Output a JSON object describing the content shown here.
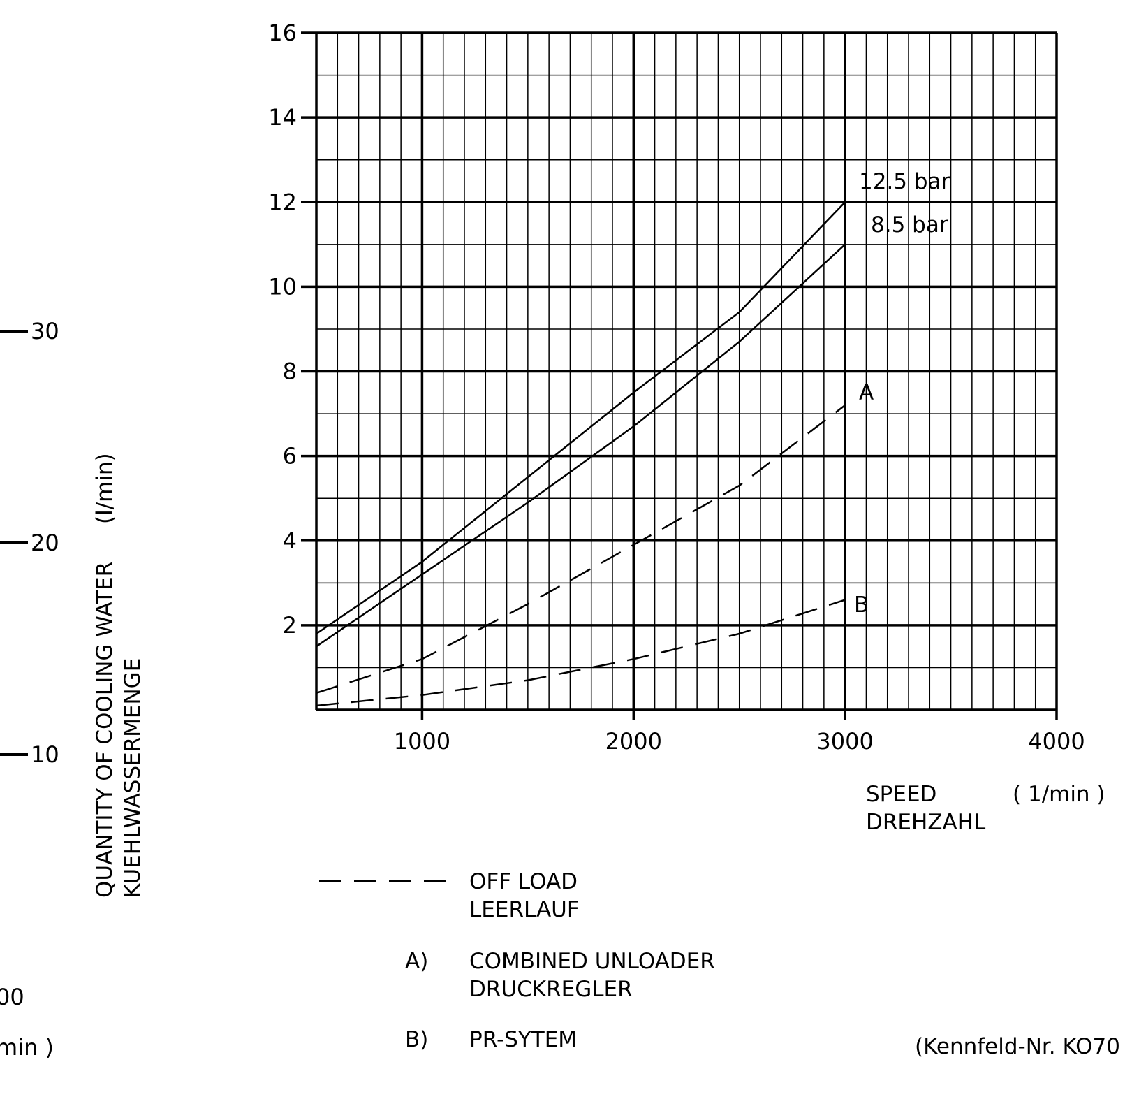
{
  "left_scale": {
    "ticks": [
      "30",
      "20",
      "10"
    ],
    "cut_tick": "00",
    "cut_unit": "min  )"
  },
  "chart_data": {
    "type": "line",
    "title": "",
    "xlabel": [
      "SPEED",
      "DREHZAHL"
    ],
    "xunit": "( 1/min )",
    "ylabel": [
      "QUANTITY OF COOLING WATER",
      "KUEHLWASSERMENGE"
    ],
    "yunit": "(l/min)",
    "xlim": [
      500,
      4000
    ],
    "ylim": [
      0,
      16
    ],
    "x_ticks": [
      1000,
      2000,
      3000,
      4000
    ],
    "y_ticks": [
      2,
      4,
      6,
      8,
      10,
      12,
      14,
      16
    ],
    "grid": true,
    "series": [
      {
        "name": "12.5 bar",
        "style": "solid",
        "x": [
          500,
          1000,
          1500,
          2000,
          2500,
          3000
        ],
        "y": [
          1.8,
          3.5,
          5.5,
          7.5,
          9.4,
          12.0
        ]
      },
      {
        "name": "8.5 bar",
        "style": "solid",
        "x": [
          500,
          1000,
          1500,
          2000,
          2500,
          3000
        ],
        "y": [
          1.5,
          3.2,
          4.9,
          6.7,
          8.7,
          11.0
        ]
      },
      {
        "name": "A",
        "style": "dashed",
        "x": [
          500,
          1000,
          1500,
          2000,
          2500,
          3000
        ],
        "y": [
          0.4,
          1.2,
          2.5,
          3.9,
          5.3,
          7.2
        ]
      },
      {
        "name": "B",
        "style": "dashed",
        "x": [
          500,
          1000,
          1500,
          2000,
          2500,
          3000
        ],
        "y": [
          0.1,
          0.35,
          0.7,
          1.2,
          1.8,
          2.6
        ]
      }
    ],
    "legend": {
      "off_load": [
        "OFF LOAD",
        "LEERLAUF"
      ],
      "a_key": "A)",
      "a_text": [
        "COMBINED UNLOADER",
        "DRUCKREGLER"
      ],
      "b_key": "B)",
      "b_text": "PR-SYTEM"
    },
    "footnote": "(Kennfeld-Nr.  KO70"
  }
}
